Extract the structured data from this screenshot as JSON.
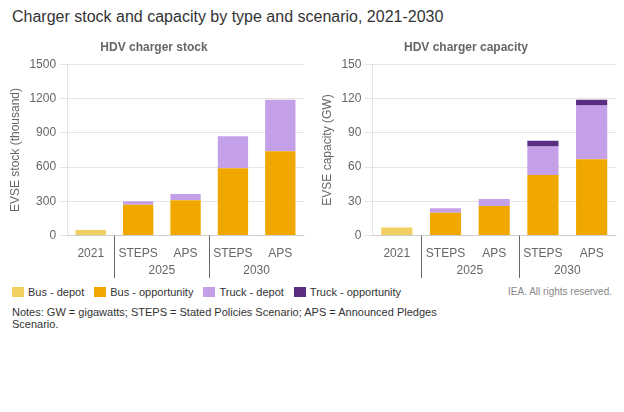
{
  "title": "Charger stock and capacity by type and scenario, 2021-2030",
  "legend": "bottom",
  "annotations": [
    "IEA. All rights reserved.",
    "Notes: GW = gigawatts; STEPS = Stated Policies Scenario; APS = Announced Pledges\nScenario."
  ],
  "chart_data": [
    {
      "type": "bar",
      "title": "HDV charger stock",
      "ylabel": "EVSE stock (thousand)",
      "stacked": true,
      "grid": true,
      "categories": [
        "2021",
        "STEPS",
        "APS",
        "STEPS",
        "APS"
      ],
      "category_groups": [
        null,
        "2025",
        "2025",
        "2030",
        "2030"
      ],
      "ylim": [
        0,
        1500
      ],
      "yticks": [
        0,
        300,
        600,
        900,
        1200,
        1500
      ],
      "series": [
        {
          "name": "Bus - depot",
          "color": "#f0d060",
          "values": [
            50,
            0,
            0,
            0,
            0
          ]
        },
        {
          "name": "Bus - opportunity",
          "color": "#f0a800",
          "values": [
            0,
            270,
            310,
            590,
            740
          ]
        },
        {
          "name": "Truck - depot",
          "color": "#c4a0e8",
          "values": [
            0,
            30,
            55,
            280,
            450
          ]
        },
        {
          "name": "Truck - opportunity",
          "color": "#5a2d82",
          "values": [
            0,
            0,
            0,
            0,
            0
          ]
        }
      ]
    },
    {
      "type": "bar",
      "title": "HDV charger capacity",
      "ylabel": "EVSE capacity (GW)",
      "stacked": true,
      "grid": true,
      "categories": [
        "2021",
        "STEPS",
        "APS",
        "STEPS",
        "APS"
      ],
      "category_groups": [
        null,
        "2025",
        "2025",
        "2030",
        "2030"
      ],
      "ylim": [
        0,
        150
      ],
      "yticks": [
        0,
        30,
        60,
        90,
        120,
        150
      ],
      "series": [
        {
          "name": "Bus - depot",
          "color": "#f0d060",
          "values": [
            7,
            0,
            0,
            0,
            0
          ]
        },
        {
          "name": "Bus - opportunity",
          "color": "#f0a800",
          "values": [
            0,
            20,
            26,
            53,
            67
          ]
        },
        {
          "name": "Truck - depot",
          "color": "#c4a0e8",
          "values": [
            0,
            4,
            6,
            25,
            47
          ]
        },
        {
          "name": "Truck - opportunity",
          "color": "#5a2d82",
          "values": [
            0,
            0,
            0,
            5,
            5
          ]
        }
      ]
    }
  ]
}
